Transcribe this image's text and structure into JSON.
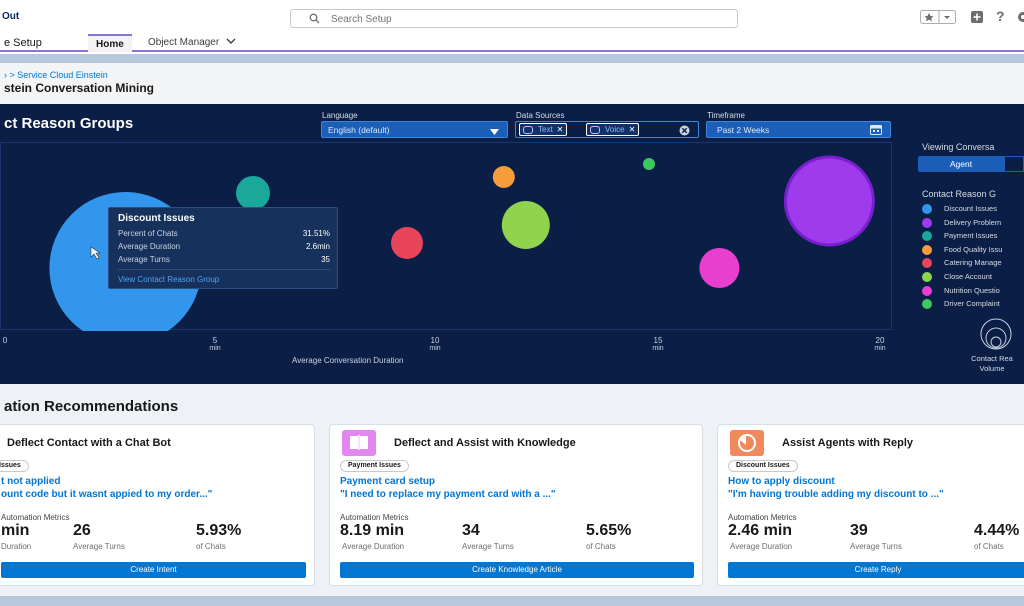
{
  "header": {
    "logo": "Out",
    "search_placeholder": "Search Setup"
  },
  "nav": {
    "app_name": "e Setup",
    "tabs": [
      "Home",
      "Object Manager"
    ]
  },
  "breadcrumb": "Service Cloud Einstein",
  "page_title": "stein Conversation Mining",
  "chart_panel": {
    "title": "ct Reason Groups",
    "language_label": "Language",
    "language_value": "English (default)",
    "sources_label": "Data Sources",
    "source_pills": [
      "Text",
      "Voice"
    ],
    "timeframe_label": "Timeframe",
    "timeframe_value": "Past 2 Weeks",
    "x_ticks": [
      "0",
      "5",
      "10",
      "15",
      "20"
    ],
    "x_unit": "min",
    "x_axis_label": "Average Conversation Duration"
  },
  "tooltip": {
    "title": "Discount Issues",
    "rows": [
      {
        "label": "Percent of Chats",
        "value": "31.51%"
      },
      {
        "label": "Average Duration",
        "value": "2.6min"
      },
      {
        "label": "Average Turns",
        "value": "35"
      }
    ],
    "link": "View Contact Reason Group"
  },
  "sidebar": {
    "viewing_label": "Viewing Conversa",
    "toggle_active": "Agent",
    "legend_title": "Contact Reason G",
    "legend": [
      {
        "label": "Discount Issues",
        "color": "#3296ed"
      },
      {
        "label": "Delivery Problem",
        "color": "#9e3bed"
      },
      {
        "label": "Payment Issues",
        "color": "#1aa89a"
      },
      {
        "label": "Food Quality Issu",
        "color": "#f59d3d"
      },
      {
        "label": "Catering Manage",
        "color": "#e8455a"
      },
      {
        "label": "Close Account",
        "color": "#8fd44c"
      },
      {
        "label": "Nutrition Questio",
        "color": "#e83fd0"
      },
      {
        "label": "Driver Complaint",
        "color": "#3cc960"
      }
    ],
    "volume_label_1": "Contact Rea",
    "volume_label_2": "Volume"
  },
  "recommendations": {
    "title": "ation Recommendations",
    "metrics_label": "Automation Metrics",
    "cards": [
      {
        "title": "Deflect Contact with a Chat Bot",
        "badge": "Issues",
        "link_title": "t not applied",
        "quote": "ount code but it wasnt appied to my order...\"",
        "metric1_value": "min",
        "metric1_label": "Duration",
        "metric2_value": "26",
        "metric2_label": "Average Turns",
        "metric3_value": "5.93%",
        "metric3_label": "of Chats",
        "button": "Create Intent",
        "icon_color": "#ffffff"
      },
      {
        "title": "Deflect and Assist with Knowledge",
        "badge": "Payment Issues",
        "link_title": "Payment card setup",
        "quote": "\"I need to replace my payment card with a ...\"",
        "metric1_value": "8.19 min",
        "metric1_label": "Average Duration",
        "metric2_value": "34",
        "metric2_label": "Average Turns",
        "metric3_value": "5.65%",
        "metric3_label": "of Chats",
        "button": "Create Knowledge Article",
        "icon_color": "#e287f0"
      },
      {
        "title": "Assist Agents with Reply",
        "badge": "Discount Issues",
        "link_title": "How to apply discount",
        "quote": "\"I'm having trouble adding my discount to ...\"",
        "metric1_value": "2.46 min",
        "metric1_label": "Average Duration",
        "metric2_value": "39",
        "metric2_label": "Average Turns",
        "metric3_value": "4.44%",
        "metric3_label": "of Chats",
        "button": "Create Reply",
        "icon_color": "#f08a5d"
      }
    ]
  },
  "chart_data": {
    "type": "scatter",
    "xlabel": "Average Conversation Duration",
    "xlim": [
      0,
      20
    ],
    "x_unit": "min",
    "series": [
      {
        "name": "Discount Issues",
        "x": 2.6,
        "color": "#3296ed"
      },
      {
        "name": "Delivery Problem",
        "x": 18.6,
        "color": "#9e3bed"
      },
      {
        "name": "Payment Issues",
        "x": 5.5,
        "color": "#1aa89a"
      },
      {
        "name": "Food Quality Issu",
        "x": 11.2,
        "color": "#f59d3d"
      },
      {
        "name": "Catering Manage",
        "x": 9.0,
        "color": "#e8455a"
      },
      {
        "name": "Close Account",
        "x": 11.7,
        "color": "#8fd44c"
      },
      {
        "name": "Nutrition Questio",
        "x": 16.1,
        "color": "#e83fd0"
      },
      {
        "name": "Driver Complaint",
        "x": 14.5,
        "color": "#3cc960"
      }
    ]
  }
}
